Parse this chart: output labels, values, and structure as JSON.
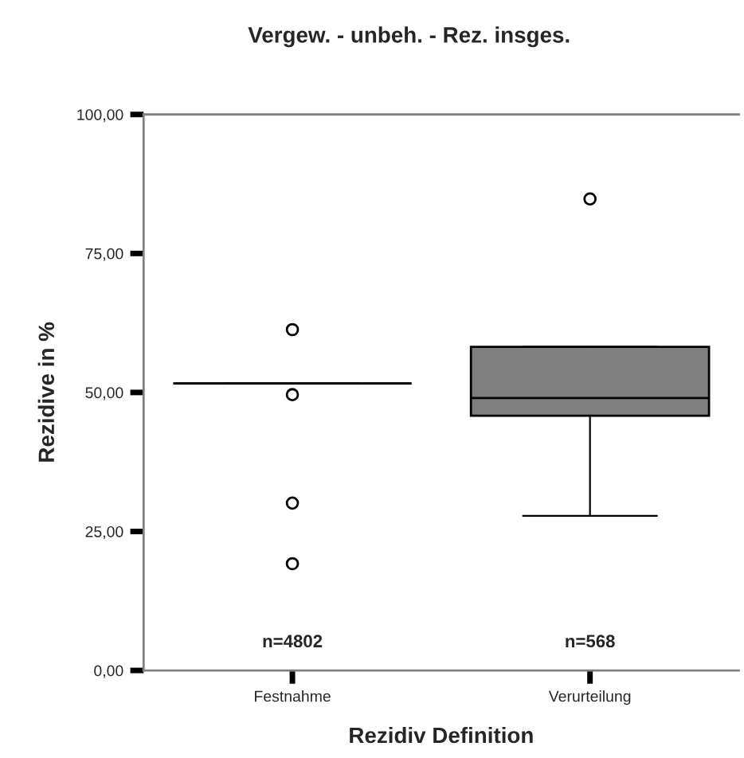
{
  "chart_data": {
    "type": "box",
    "title": "Vergew. - unbeh. - Rez. insges.",
    "xlabel": "Rezidiv Definition",
    "ylabel": "Rezidive in %",
    "categories": [
      "Festnahme",
      "Verurteilung"
    ],
    "boxes": [
      {
        "low": 51.6,
        "q1": 51.6,
        "median": 51.6,
        "q3": 51.6,
        "high": 51.6,
        "outliers": [
          61.3,
          49.6,
          30.1,
          19.2
        ]
      },
      {
        "low": 27.8,
        "q1": 45.8,
        "median": 49.0,
        "q3": 58.2,
        "high": 58.2,
        "outliers": [
          84.8
        ]
      }
    ],
    "colors": [
      "#000000",
      "#808080"
    ],
    "ylim": [
      0,
      100
    ],
    "yticks": [
      {
        "value": 0,
        "label": "0,00"
      },
      {
        "value": 25,
        "label": "25,00"
      },
      {
        "value": 50,
        "label": "50,00"
      },
      {
        "value": 75,
        "label": "75,00"
      },
      {
        "value": 100,
        "label": "100,00"
      }
    ],
    "annotations": [
      "n=4802",
      "n=568"
    ],
    "grid": false,
    "legend": false
  }
}
